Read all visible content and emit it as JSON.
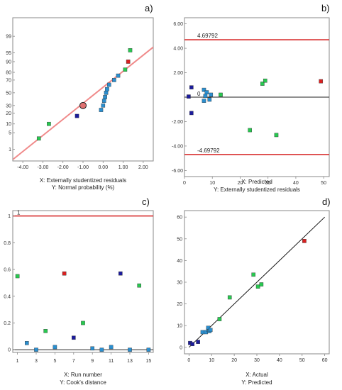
{
  "chart_data": [
    {
      "panel_label": "a)",
      "type": "scatter",
      "xlabel": "X: Externally studentized residuals",
      "ylabel": "Y: Normal probability (%)",
      "xlim": [
        -4.5,
        2.5
      ],
      "xticks": [
        "-4.00",
        "-3.00",
        "-2.00",
        "-1.00",
        "0.00",
        "1.00",
        "2.00"
      ],
      "yticks": [
        "1",
        "5",
        "10",
        "20",
        "30",
        "50",
        "70",
        "80",
        "90",
        "95",
        "99"
      ],
      "reference_line": {
        "from": [
          -4.5,
          0.3
        ],
        "to": [
          2.5,
          97.0
        ]
      },
      "highlighted_point": [
        -1.0,
        30
      ],
      "points": [
        {
          "x": -3.2,
          "y": 3,
          "c": "g"
        },
        {
          "x": -2.7,
          "y": 10,
          "c": "g"
        },
        {
          "x": -1.3,
          "y": 17,
          "c": "b"
        },
        {
          "x": -0.1,
          "y": 24,
          "c": "b"
        },
        {
          "x": 0.0,
          "y": 30,
          "c": "b"
        },
        {
          "x": 0.05,
          "y": 37,
          "c": "b"
        },
        {
          "x": 0.1,
          "y": 43,
          "c": "b"
        },
        {
          "x": 0.15,
          "y": 50,
          "c": "b"
        },
        {
          "x": 0.2,
          "y": 56,
          "c": "b"
        },
        {
          "x": 0.3,
          "y": 63,
          "c": "b"
        },
        {
          "x": 0.55,
          "y": 70,
          "c": "b"
        },
        {
          "x": 0.75,
          "y": 76,
          "c": "b"
        },
        {
          "x": 1.1,
          "y": 83,
          "c": "g"
        },
        {
          "x": 1.25,
          "y": 90,
          "c": "r"
        },
        {
          "x": 1.35,
          "y": 96,
          "c": "g"
        }
      ]
    },
    {
      "panel_label": "b)",
      "type": "scatter",
      "xlabel": "X: Predicted",
      "ylabel": "Y: Externally studentized residuals",
      "xlim": [
        0,
        52
      ],
      "ylim": [
        -6.5,
        6.5
      ],
      "xticks": [
        0,
        10,
        20,
        30,
        40,
        50
      ],
      "yticks": [
        -6,
        -4,
        -2,
        0,
        2,
        4,
        6
      ],
      "ytick_labels": [
        "-6.00",
        "-4.00",
        "-2.00",
        "0",
        "2.00",
        "4.00",
        "6.00"
      ],
      "limits": [
        4.69792,
        -4.69792
      ],
      "limit_labels": [
        "4.69792",
        "-4.69792"
      ],
      "zero_label": "0",
      "points": [
        {
          "x": 1.5,
          "y": 0.05,
          "c": "b"
        },
        {
          "x": 2.5,
          "y": 0.8,
          "c": "b"
        },
        {
          "x": 2.5,
          "y": -1.3,
          "c": "b"
        },
        {
          "x": 7.0,
          "y": 0.6,
          "c": "b"
        },
        {
          "x": 7.0,
          "y": -0.3,
          "c": "b"
        },
        {
          "x": 7.5,
          "y": 0.1,
          "c": "b"
        },
        {
          "x": 8.0,
          "y": 0.4,
          "c": "b"
        },
        {
          "x": 9.0,
          "y": -0.2,
          "c": "b"
        },
        {
          "x": 9.5,
          "y": 0.2,
          "c": "b"
        },
        {
          "x": 13.0,
          "y": 0.2,
          "c": "g"
        },
        {
          "x": 23.5,
          "y": -2.7,
          "c": "g"
        },
        {
          "x": 28.0,
          "y": 1.1,
          "c": "g"
        },
        {
          "x": 29.0,
          "y": 1.35,
          "c": "g"
        },
        {
          "x": 33.0,
          "y": -3.1,
          "c": "g"
        },
        {
          "x": 49.0,
          "y": 1.3,
          "c": "r"
        }
      ]
    },
    {
      "panel_label": "c)",
      "type": "scatter",
      "xlabel": "X: Run number",
      "ylabel": "Y: Cook's distance",
      "xlim": [
        0.5,
        15.5
      ],
      "ylim": [
        -0.02,
        1.04
      ],
      "xticks": [
        1,
        3,
        5,
        7,
        9,
        11,
        13,
        15
      ],
      "yticks": [
        0,
        0.2,
        0.4,
        0.6,
        0.8,
        1
      ],
      "ytick_labels": [
        "0",
        "0.2",
        "0.4",
        "0.6",
        "0.8",
        "1"
      ],
      "limit": 1,
      "limit_label": "1",
      "points": [
        {
          "x": 1,
          "y": 0.55,
          "c": "g"
        },
        {
          "x": 2,
          "y": 0.05,
          "c": "b"
        },
        {
          "x": 3,
          "y": 0.0,
          "c": "b"
        },
        {
          "x": 4,
          "y": 0.14,
          "c": "g"
        },
        {
          "x": 5,
          "y": 0.02,
          "c": "b"
        },
        {
          "x": 6,
          "y": 0.57,
          "c": "r"
        },
        {
          "x": 7,
          "y": 0.09,
          "c": "b"
        },
        {
          "x": 8,
          "y": 0.2,
          "c": "g"
        },
        {
          "x": 9,
          "y": 0.01,
          "c": "b"
        },
        {
          "x": 10,
          "y": 0.0,
          "c": "b"
        },
        {
          "x": 11,
          "y": 0.02,
          "c": "b"
        },
        {
          "x": 12,
          "y": 0.57,
          "c": "b"
        },
        {
          "x": 13,
          "y": 0.0,
          "c": "b"
        },
        {
          "x": 14,
          "y": 0.48,
          "c": "g"
        },
        {
          "x": 15,
          "y": 0.0,
          "c": "b"
        }
      ]
    },
    {
      "panel_label": "d)",
      "type": "scatter",
      "xlabel": "X: Actual",
      "ylabel": "Y: Predicted",
      "xlim": [
        -2,
        62
      ],
      "ylim": [
        -3,
        63
      ],
      "xticks": [
        0,
        10,
        20,
        30,
        40,
        50,
        60
      ],
      "yticks": [
        0,
        10,
        20,
        30,
        40,
        50,
        60
      ],
      "identity_line": [
        [
          0,
          0
        ],
        [
          60,
          60
        ]
      ],
      "points": [
        {
          "x": 0.5,
          "y": 2.0,
          "c": "b"
        },
        {
          "x": 1.5,
          "y": 1.5,
          "c": "b"
        },
        {
          "x": 4.0,
          "y": 2.5,
          "c": "b"
        },
        {
          "x": 6.0,
          "y": 7.0,
          "c": "b"
        },
        {
          "x": 7.5,
          "y": 7.0,
          "c": "b"
        },
        {
          "x": 8.5,
          "y": 8.0,
          "c": "b"
        },
        {
          "x": 8.5,
          "y": 9.0,
          "c": "b"
        },
        {
          "x": 9.0,
          "y": 7.5,
          "c": "b"
        },
        {
          "x": 9.5,
          "y": 8.0,
          "c": "b"
        },
        {
          "x": 13.5,
          "y": 13.0,
          "c": "g"
        },
        {
          "x": 18.0,
          "y": 23.0,
          "c": "g"
        },
        {
          "x": 28.5,
          "y": 33.5,
          "c": "g"
        },
        {
          "x": 30.5,
          "y": 28.0,
          "c": "g"
        },
        {
          "x": 32.0,
          "y": 29.0,
          "c": "g"
        },
        {
          "x": 51.0,
          "y": 49.0,
          "c": "r"
        }
      ]
    }
  ],
  "colors": {
    "b": "#1c1c9c",
    "b_alt": "#2a8fd0",
    "g": "#28c850",
    "r": "#d82020",
    "ref_line": "#f08a8a",
    "limit_line": "#d83030",
    "frame": "#888888",
    "diag": "#111111"
  }
}
